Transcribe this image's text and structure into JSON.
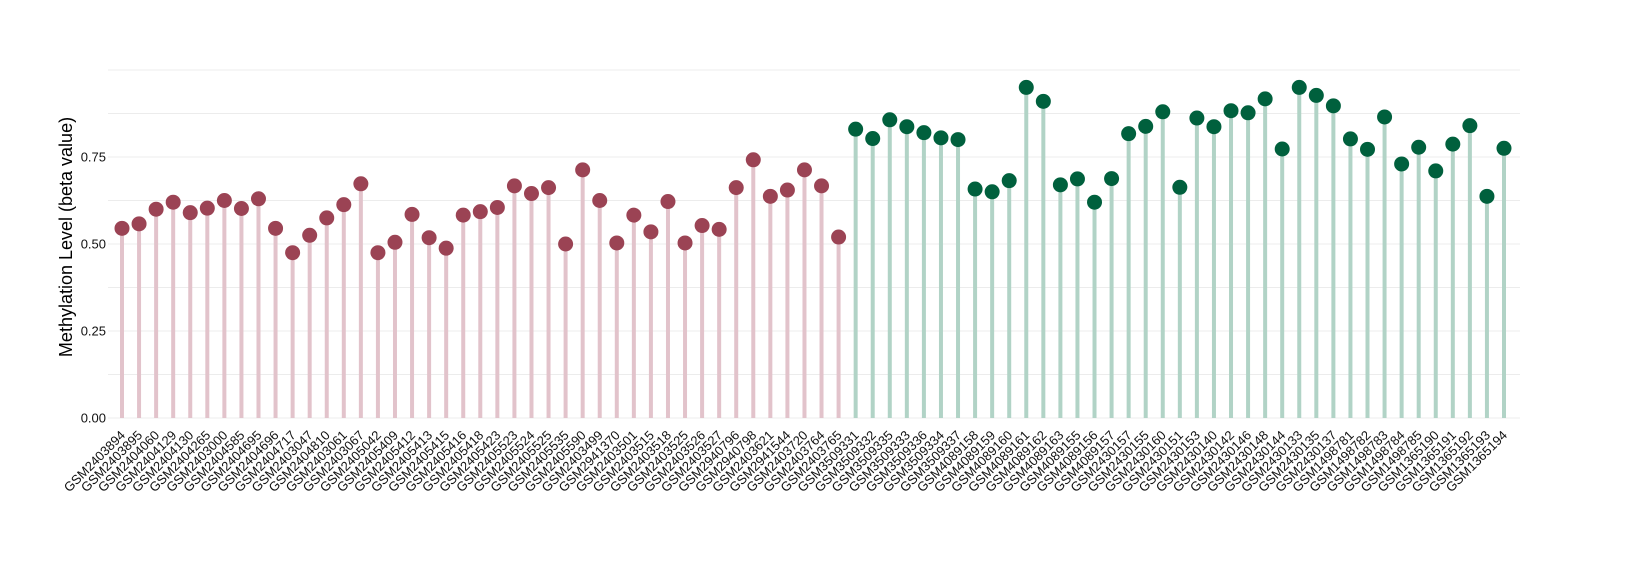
{
  "chart_data": {
    "type": "lollipop",
    "title": "",
    "xlabel": "",
    "ylabel": "Methylation Level (beta value)",
    "ylim": [
      0,
      1.0
    ],
    "yticks": [
      0.0,
      0.25,
      0.5,
      0.75
    ],
    "ytick_labels": [
      "0.00",
      "0.25",
      "0.50",
      "0.75"
    ],
    "grid": "horizontal",
    "legend": "none",
    "colors": {
      "group1_point": "#9b4354",
      "group1_stem": "#e2c3cb",
      "group2_point": "#00603d",
      "group2_stem": "#b1d3c6"
    },
    "groups": [
      {
        "categories": [
          "GSM2403894",
          "GSM2403895",
          "GSM2404060",
          "GSM2404129",
          "GSM2404130",
          "GSM2404265",
          "GSM2403000",
          "GSM2404585",
          "GSM2404695",
          "GSM2404696",
          "GSM2404717",
          "GSM2403047",
          "GSM2404810",
          "GSM2403061",
          "GSM2403067",
          "GSM2405042",
          "GSM2405409",
          "GSM2405412",
          "GSM2405413",
          "GSM2405415",
          "GSM2405416",
          "GSM2405418",
          "GSM2405423",
          "GSM2405523",
          "GSM2405524",
          "GSM2405525",
          "GSM2405535",
          "GSM2405590",
          "GSM2403499",
          "GSM2941370",
          "GSM2403501",
          "GSM2403515",
          "GSM2403518",
          "GSM2403525",
          "GSM2403526",
          "GSM2403527",
          "GSM2940796",
          "GSM2940798",
          "GSM2403621",
          "GSM2941544",
          "GSM2403720",
          "GSM2403764",
          "GSM2403765"
        ],
        "values": [
          0.545,
          0.558,
          0.6,
          0.62,
          0.59,
          0.603,
          0.625,
          0.602,
          0.63,
          0.545,
          0.475,
          0.525,
          0.575,
          0.613,
          0.673,
          0.475,
          0.505,
          0.585,
          0.518,
          0.488,
          0.583,
          0.593,
          0.605,
          0.667,
          0.645,
          0.662,
          0.5,
          0.713,
          0.625,
          0.503,
          0.583,
          0.535,
          0.622,
          0.503,
          0.553,
          0.542,
          0.662,
          0.742,
          0.637,
          0.655,
          0.713,
          0.667,
          0.52
        ]
      },
      {
        "categories": [
          "GSM3509331",
          "GSM3509332",
          "GSM3509335",
          "GSM3509333",
          "GSM3509336",
          "GSM3509334",
          "GSM3509337",
          "GSM4089158",
          "GSM4089159",
          "GSM4089160",
          "GSM4089161",
          "GSM4089162",
          "GSM4089163",
          "GSM4089155",
          "GSM4089156",
          "GSM4089157",
          "GSM2430157",
          "GSM2430155",
          "GSM2430160",
          "GSM2430151",
          "GSM2430153",
          "GSM2430140",
          "GSM2430142",
          "GSM2430146",
          "GSM2430148",
          "GSM2430144",
          "GSM2430133",
          "GSM2430135",
          "GSM2430137",
          "GSM1498781",
          "GSM1498782",
          "GSM1498783",
          "GSM1498784",
          "GSM1498785",
          "GSM1365190",
          "GSM1365191",
          "GSM1365192",
          "GSM1365193",
          "GSM1365194"
        ],
        "values": [
          0.83,
          0.803,
          0.857,
          0.837,
          0.82,
          0.805,
          0.8,
          0.658,
          0.65,
          0.682,
          0.95,
          0.91,
          0.67,
          0.687,
          0.62,
          0.688,
          0.817,
          0.838,
          0.88,
          0.663,
          0.862,
          0.837,
          0.883,
          0.877,
          0.917,
          0.773,
          0.95,
          0.927,
          0.897,
          0.802,
          0.772,
          0.865,
          0.73,
          0.778,
          0.71,
          0.787,
          0.84,
          0.637,
          0.775
        ]
      }
    ]
  }
}
